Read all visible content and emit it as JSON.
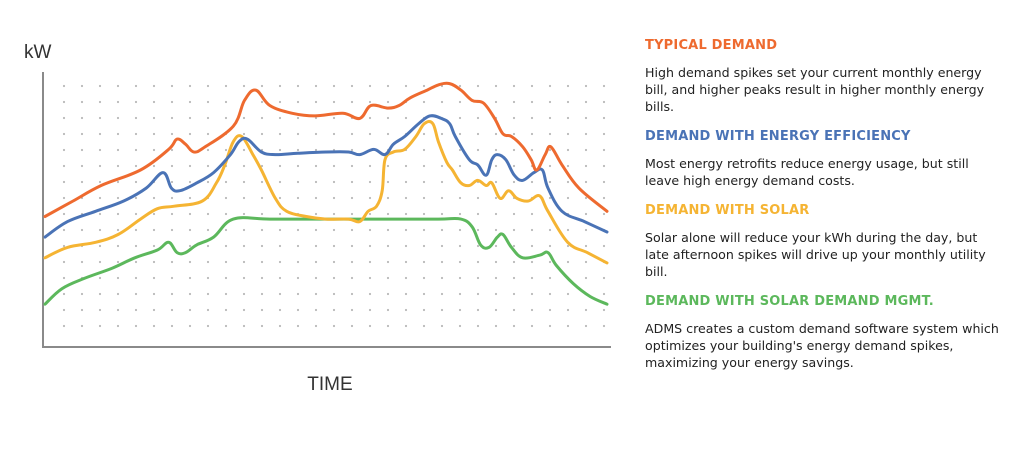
{
  "chart_data": {
    "type": "line",
    "xlabel": "TIME",
    "ylabel": "kW",
    "grid": "dotted",
    "ylim": [
      0,
      100
    ],
    "xlim": [
      0,
      100
    ],
    "series": [
      {
        "name": "TYPICAL DEMAND",
        "color": "#ee6a2f",
        "points": [
          [
            0,
            44
          ],
          [
            5,
            50
          ],
          [
            10,
            56
          ],
          [
            17,
            62
          ],
          [
            22,
            70
          ],
          [
            23.5,
            74
          ],
          [
            25,
            72
          ],
          [
            26.5,
            69
          ],
          [
            28.5,
            71
          ],
          [
            33.5,
            79
          ],
          [
            35.5,
            89
          ],
          [
            37.5,
            93
          ],
          [
            40,
            87
          ],
          [
            44,
            84
          ],
          [
            48,
            83
          ],
          [
            53,
            84
          ],
          [
            56,
            82
          ],
          [
            58,
            87
          ],
          [
            61,
            86
          ],
          [
            63,
            87
          ],
          [
            65,
            90
          ],
          [
            68,
            93
          ],
          [
            70,
            95
          ],
          [
            72,
            95.5
          ],
          [
            74,
            93
          ],
          [
            76,
            89
          ],
          [
            78,
            88
          ],
          [
            80,
            82
          ],
          [
            81.5,
            76
          ],
          [
            83,
            75
          ],
          [
            85,
            71
          ],
          [
            86.5,
            66
          ],
          [
            87.5,
            62
          ],
          [
            89,
            68
          ],
          [
            90,
            71
          ],
          [
            92,
            64
          ],
          [
            95,
            55
          ],
          [
            100,
            46
          ]
        ]
      },
      {
        "name": "DEMAND WITH ENERGY EFFICIENCY",
        "color": "#4a73b6",
        "points": [
          [
            0,
            36
          ],
          [
            4,
            42
          ],
          [
            9,
            46
          ],
          [
            14,
            50
          ],
          [
            18,
            55
          ],
          [
            21,
            61
          ],
          [
            22.5,
            55
          ],
          [
            24,
            54
          ],
          [
            27,
            57
          ],
          [
            30,
            61
          ],
          [
            33,
            68
          ],
          [
            34.5,
            73
          ],
          [
            36,
            74
          ],
          [
            38.5,
            69
          ],
          [
            41,
            68
          ],
          [
            45,
            68.5
          ],
          [
            50,
            69
          ],
          [
            54,
            69
          ],
          [
            56,
            68
          ],
          [
            58.5,
            70
          ],
          [
            60.5,
            68
          ],
          [
            62,
            72
          ],
          [
            64,
            75
          ],
          [
            66.5,
            80
          ],
          [
            68.5,
            83
          ],
          [
            70.5,
            82
          ],
          [
            72,
            80
          ],
          [
            73,
            75
          ],
          [
            75.5,
            66
          ],
          [
            77,
            64
          ],
          [
            78.5,
            60
          ],
          [
            79.5,
            66
          ],
          [
            80.5,
            68
          ],
          [
            82,
            66
          ],
          [
            83.5,
            60
          ],
          [
            85,
            58
          ],
          [
            87,
            61
          ],
          [
            88.5,
            62
          ],
          [
            89.5,
            55
          ],
          [
            92,
            46
          ],
          [
            96,
            42
          ],
          [
            100,
            38
          ]
        ]
      },
      {
        "name": "DEMAND WITH SOLAR",
        "color": "#f5b433",
        "points": [
          [
            0,
            28
          ],
          [
            4,
            32
          ],
          [
            9,
            34
          ],
          [
            13,
            37
          ],
          [
            17,
            43
          ],
          [
            20,
            47
          ],
          [
            23,
            48
          ],
          [
            28,
            50
          ],
          [
            30.5,
            57
          ],
          [
            32,
            64
          ],
          [
            33.5,
            73
          ],
          [
            35,
            75
          ],
          [
            37,
            68
          ],
          [
            38.5,
            62
          ],
          [
            41,
            51
          ],
          [
            43,
            46
          ],
          [
            46.5,
            44
          ],
          [
            50,
            43
          ],
          [
            54,
            43
          ],
          [
            56,
            42
          ],
          [
            57.5,
            46
          ],
          [
            59,
            48
          ],
          [
            60,
            54
          ],
          [
            60.5,
            66
          ],
          [
            62,
            69
          ],
          [
            64,
            70
          ],
          [
            66,
            75
          ],
          [
            67.5,
            80
          ],
          [
            69,
            80
          ],
          [
            70,
            73
          ],
          [
            71.5,
            65
          ],
          [
            72.5,
            62
          ],
          [
            74,
            57
          ],
          [
            75.5,
            56
          ],
          [
            77,
            58
          ],
          [
            78.5,
            56
          ],
          [
            79.5,
            57
          ],
          [
            81,
            51
          ],
          [
            82.5,
            54
          ],
          [
            84,
            51
          ],
          [
            86,
            50
          ],
          [
            88,
            52
          ],
          [
            89.5,
            46
          ],
          [
            93,
            34
          ],
          [
            96.5,
            30
          ],
          [
            100,
            26
          ]
        ]
      },
      {
        "name": "DEMAND WITH SOLAR DEMAND MGMT.",
        "color": "#5cb85c",
        "points": [
          [
            0,
            10
          ],
          [
            3,
            16
          ],
          [
            7,
            20
          ],
          [
            12,
            24
          ],
          [
            16,
            28
          ],
          [
            20,
            31
          ],
          [
            22,
            34
          ],
          [
            23.5,
            30
          ],
          [
            25,
            30
          ],
          [
            27,
            33
          ],
          [
            30,
            36
          ],
          [
            33.5,
            43
          ],
          [
            40,
            43
          ],
          [
            50,
            43
          ],
          [
            60,
            43
          ],
          [
            70,
            43
          ],
          [
            74,
            43
          ],
          [
            76,
            40
          ],
          [
            77.5,
            33
          ],
          [
            79,
            32
          ],
          [
            80.5,
            36
          ],
          [
            81.5,
            37
          ],
          [
            83,
            32
          ],
          [
            85,
            28
          ],
          [
            88,
            29
          ],
          [
            89.5,
            30
          ],
          [
            91,
            25
          ],
          [
            94,
            18
          ],
          [
            97,
            13
          ],
          [
            100,
            10
          ]
        ]
      }
    ]
  },
  "legend": [
    {
      "title": "TYPICAL DEMAND",
      "color": "#ee6a2f",
      "desc": "High demand spikes set your current monthly energy bill, and higher peaks result in higher monthly energy bills."
    },
    {
      "title": "DEMAND WITH ENERGY EFFICIENCY",
      "color": "#4a73b6",
      "desc": "Most energy retrofits reduce energy usage, but still leave high energy demand costs."
    },
    {
      "title": "DEMAND WITH SOLAR",
      "color": "#f5b433",
      "desc": "Solar alone will reduce your kWh during the day, but late afternoon spikes will drive up your monthly utility bill."
    },
    {
      "title": "DEMAND WITH SOLAR DEMAND MGMT.",
      "color": "#5cb85c",
      "desc": "ADMS creates a custom demand software system which optimizes your building's energy demand spikes, maximizing your energy savings."
    }
  ]
}
